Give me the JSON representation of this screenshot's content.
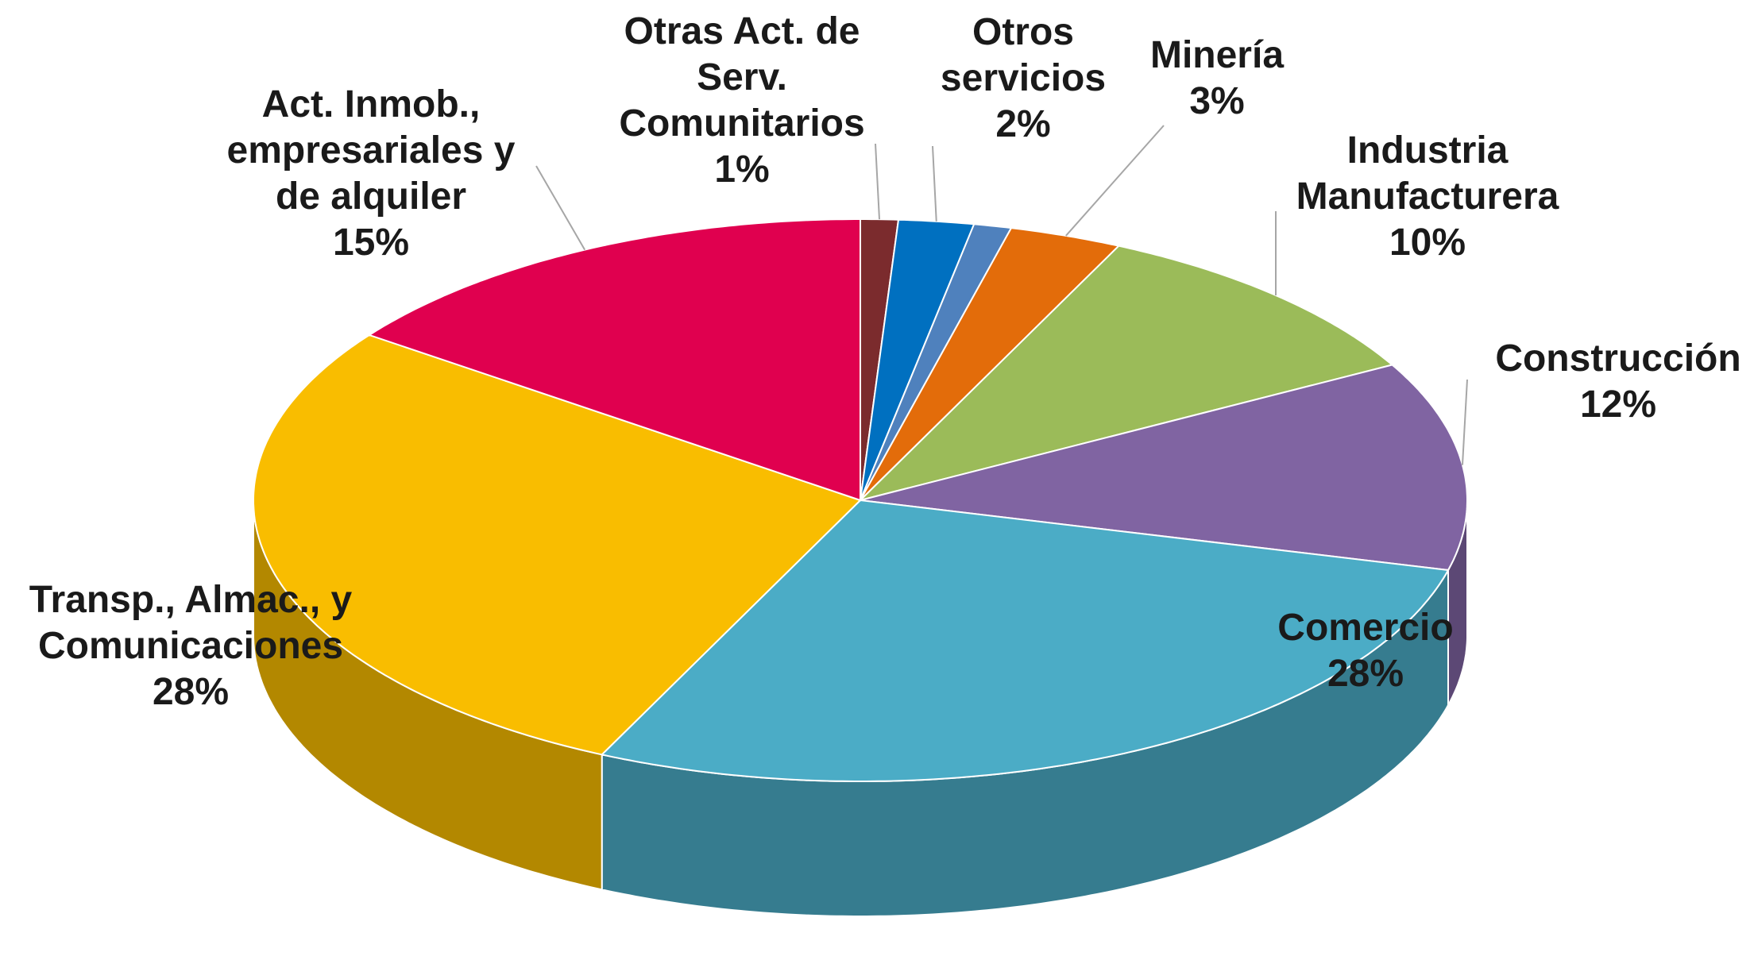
{
  "chart_data": {
    "type": "pie3d",
    "categories": [
      "Otras Act. de Serv. Comunitarios",
      "Otros servicios",
      null,
      "Minería",
      "Industria Manufacturera",
      "Construcción",
      "Comercio",
      "Transp., Almac., y Comunicaciones",
      "Act. Inmob., empresariales y de alquiler"
    ],
    "values": [
      1,
      2,
      1,
      3,
      10,
      12,
      28,
      28,
      15
    ],
    "value_labels": [
      "1%",
      "2%",
      null,
      "3%",
      "10%",
      "12%",
      "28%",
      "28%",
      "15%"
    ],
    "colors": [
      "#7b2b2d",
      "#0070c0",
      "#4f81bd",
      "#e36c0a",
      "#9bbb59",
      "#8064a2",
      "#4bacc6",
      "#f9bd00",
      "#e0004f"
    ]
  }
}
